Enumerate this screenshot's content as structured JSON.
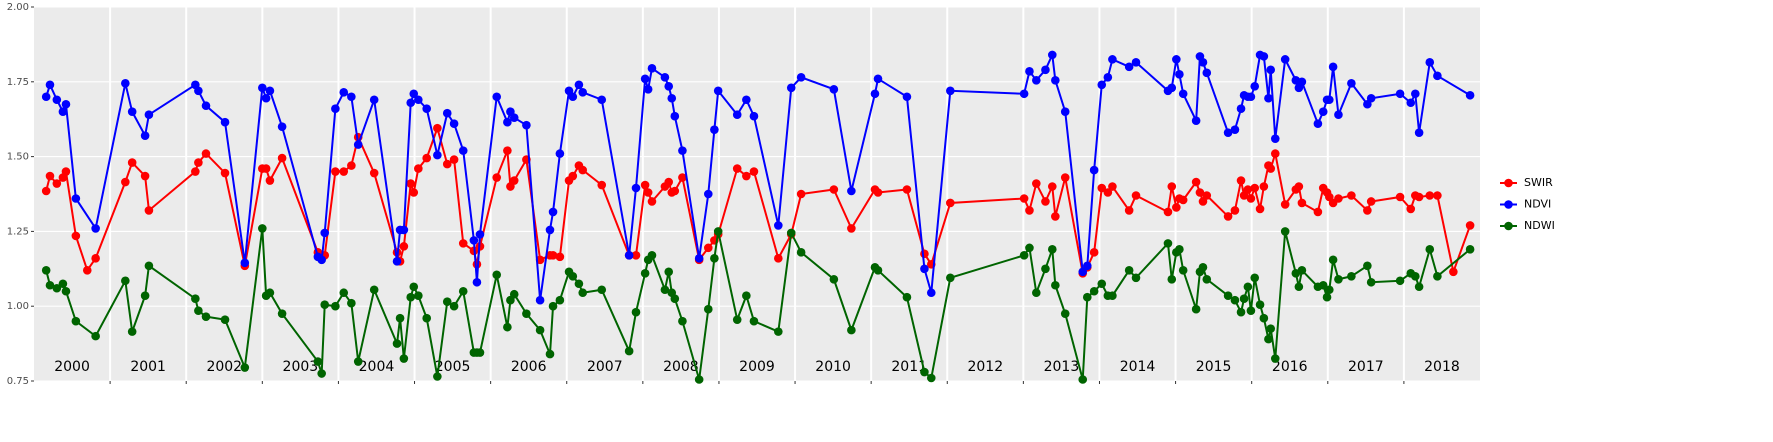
{
  "chart_data": {
    "type": "line",
    "xlim": [
      2000,
      2019
    ],
    "ylim": [
      0.75,
      2.0
    ],
    "xticks": [
      2001,
      2002,
      2003,
      2004,
      2005,
      2006,
      2007,
      2008,
      2009,
      2010,
      2011,
      2012,
      2013,
      2014,
      2015,
      2016,
      2017,
      2018
    ],
    "yticks": [
      {
        "value": 0.75,
        "label": "0.75"
      },
      {
        "value": 1.0,
        "label": "1.00"
      },
      {
        "value": 1.25,
        "label": "1.25"
      },
      {
        "value": 1.5,
        "label": "1.50"
      },
      {
        "value": 1.75,
        "label": "1.75"
      },
      {
        "value": 2.0,
        "label": "2.00"
      }
    ],
    "year_labels": [
      2000,
      2001,
      2002,
      2003,
      2004,
      2005,
      2006,
      2007,
      2008,
      2009,
      2010,
      2011,
      2012,
      2013,
      2014,
      2015,
      2016,
      2017,
      2018
    ],
    "grid": true,
    "legend": "right",
    "x": [
      2000.16,
      2000.21,
      2000.3,
      2000.38,
      2000.42,
      2000.55,
      2000.81,
      2001.2,
      2001.29,
      2001.46,
      2001.51,
      2002.12,
      2002.16,
      2002.26,
      2002.51,
      2002.77,
      2003.0,
      2003.05,
      2003.1,
      2003.26,
      2003.73,
      2003.78,
      2003.82,
      2003.96,
      2004.07,
      2004.17,
      2004.26,
      2004.47,
      2004.77,
      2004.81,
      2004.86,
      2004.95,
      2004.99,
      2005.05,
      2005.16,
      2005.3,
      2005.43,
      2005.52,
      2005.64,
      2005.78,
      2005.82,
      2005.86,
      2006.08,
      2006.22,
      2006.26,
      2006.31,
      2006.47,
      2006.65,
      2006.78,
      2006.82,
      2006.91,
      2007.03,
      2007.08,
      2007.16,
      2007.21,
      2007.46,
      2007.82,
      2007.91,
      2008.03,
      2008.07,
      2008.12,
      2008.29,
      2008.34,
      2008.38,
      2008.42,
      2008.52,
      2008.74,
      2008.86,
      2008.94,
      2008.99,
      2009.24,
      2009.36,
      2009.46,
      2009.78,
      2009.95,
      2010.08,
      2010.51,
      2010.74,
      2011.05,
      2011.09,
      2011.47,
      2011.7,
      2011.79,
      2012.04,
      2013.01,
      2013.08,
      2013.17,
      2013.29,
      2013.38,
      2013.42,
      2013.55,
      2013.78,
      2013.84,
      2013.93,
      2014.03,
      2014.11,
      2014.17,
      2014.39,
      2014.48,
      2014.9,
      2014.95,
      2015.01,
      2015.05,
      2015.1,
      2015.27,
      2015.32,
      2015.36,
      2015.41,
      2015.69,
      2015.78,
      2015.86,
      2015.9,
      2015.95,
      2015.99,
      2016.04,
      2016.11,
      2016.16,
      2016.22,
      2016.25,
      2016.31,
      2016.44,
      2016.58,
      2016.62,
      2016.66,
      2016.87,
      2016.94,
      2016.99,
      2017.02,
      2017.07,
      2017.14,
      2017.31,
      2017.52,
      2017.57,
      2017.95,
      2018.09,
      2018.15,
      2018.2,
      2018.34,
      2018.44,
      2018.87
    ],
    "series": [
      {
        "name": "SWIR",
        "color": "#ff0000",
        "x": [
          2000.16,
          2000.21,
          2000.3,
          2000.38,
          2000.42,
          2000.55,
          2000.7,
          2000.81,
          2001.2,
          2001.29,
          2001.46,
          2001.51,
          2002.12,
          2002.16,
          2002.26,
          2002.51,
          2002.77,
          2003.0,
          2003.05,
          2003.1,
          2003.26,
          2003.73,
          2003.78,
          2003.82,
          2003.96,
          2004.07,
          2004.17,
          2004.26,
          2004.47,
          2004.77,
          2004.81,
          2004.86,
          2004.95,
          2004.99,
          2005.05,
          2005.16,
          2005.3,
          2005.43,
          2005.52,
          2005.64,
          2005.78,
          2005.82,
          2005.86,
          2006.08,
          2006.22,
          2006.26,
          2006.31,
          2006.47,
          2006.65,
          2006.78,
          2006.82,
          2006.91,
          2007.03,
          2007.08,
          2007.16,
          2007.21,
          2007.46,
          2007.82,
          2007.91,
          2008.03,
          2008.07,
          2008.12,
          2008.29,
          2008.34,
          2008.38,
          2008.42,
          2008.52,
          2008.74,
          2008.86,
          2008.94,
          2008.99,
          2009.24,
          2009.36,
          2009.46,
          2009.78,
          2009.95,
          2010.08,
          2010.51,
          2010.74,
          2011.05,
          2011.09,
          2011.47,
          2011.7,
          2011.79,
          2012.04,
          2013.01,
          2013.08,
          2013.17,
          2013.29,
          2013.38,
          2013.42,
          2013.55,
          2013.78,
          2013.84,
          2013.93,
          2014.03,
          2014.11,
          2014.17,
          2014.39,
          2014.48,
          2014.9,
          2014.95,
          2015.01,
          2015.05,
          2015.1,
          2015.27,
          2015.32,
          2015.36,
          2015.41,
          2015.69,
          2015.78,
          2015.86,
          2015.9,
          2015.95,
          2015.99,
          2016.04,
          2016.11,
          2016.16,
          2016.22,
          2016.25,
          2016.31,
          2016.44,
          2016.58,
          2016.62,
          2016.66,
          2016.87,
          2016.94,
          2016.99,
          2017.02,
          2017.07,
          2017.14,
          2017.31,
          2017.52,
          2017.57,
          2017.95,
          2018.09,
          2018.15,
          2018.2,
          2018.34,
          2018.44,
          2018.65,
          2018.87
        ],
        "values": [
          1.385,
          1.435,
          1.41,
          1.43,
          1.45,
          1.235,
          1.12,
          1.16,
          1.415,
          1.48,
          1.435,
          1.32,
          1.45,
          1.48,
          1.51,
          1.445,
          1.135,
          1.46,
          1.46,
          1.42,
          1.495,
          1.18,
          1.17,
          1.17,
          1.45,
          1.45,
          1.47,
          1.565,
          1.445,
          1.18,
          1.15,
          1.2,
          1.41,
          1.38,
          1.46,
          1.495,
          1.595,
          1.475,
          1.49,
          1.21,
          1.185,
          1.14,
          1.2,
          1.43,
          1.52,
          1.4,
          1.42,
          1.49,
          1.155,
          1.17,
          1.17,
          1.165,
          1.42,
          1.435,
          1.47,
          1.455,
          1.405,
          1.17,
          1.17,
          1.405,
          1.38,
          1.35,
          1.4,
          1.415,
          1.38,
          1.385,
          1.43,
          1.155,
          1.195,
          1.22,
          1.24,
          1.46,
          1.435,
          1.45,
          1.16,
          1.24,
          1.375,
          1.39,
          1.26,
          1.39,
          1.38,
          1.39,
          1.175,
          1.14,
          1.345,
          1.36,
          1.32,
          1.41,
          1.35,
          1.4,
          1.3,
          1.43,
          1.11,
          1.13,
          1.18,
          1.395,
          1.38,
          1.4,
          1.32,
          1.37,
          1.315,
          1.4,
          1.33,
          1.36,
          1.355,
          1.415,
          1.38,
          1.35,
          1.37,
          1.3,
          1.32,
          1.42,
          1.37,
          1.39,
          1.36,
          1.395,
          1.325,
          1.4,
          1.47,
          1.46,
          1.51,
          1.34,
          1.39,
          1.4,
          1.345,
          1.315,
          1.395,
          1.38,
          1.365,
          1.345,
          1.36,
          1.37,
          1.32,
          1.35,
          1.365,
          1.325,
          1.37,
          1.365,
          1.37,
          1.37,
          1.115,
          1.27
        ]
      },
      {
        "name": "NDVI",
        "color": "#0000ff",
        "values": [
          1.7,
          1.74,
          1.69,
          1.65,
          1.675,
          1.36,
          1.26,
          1.745,
          1.65,
          1.57,
          1.64,
          1.74,
          1.72,
          1.67,
          1.615,
          1.145,
          1.73,
          1.695,
          1.72,
          1.6,
          1.165,
          1.155,
          1.245,
          1.66,
          1.715,
          1.7,
          1.54,
          1.69,
          1.15,
          1.255,
          1.255,
          1.68,
          1.71,
          1.69,
          1.66,
          1.505,
          1.645,
          1.61,
          1.52,
          1.22,
          1.08,
          1.24,
          1.7,
          1.615,
          1.65,
          1.63,
          1.605,
          1.02,
          1.255,
          1.315,
          1.51,
          1.72,
          1.7,
          1.74,
          1.715,
          1.69,
          1.17,
          1.395,
          1.76,
          1.725,
          1.795,
          1.765,
          1.735,
          1.695,
          1.635,
          1.52,
          1.16,
          1.375,
          1.59,
          1.72,
          1.64,
          1.69,
          1.635,
          1.27,
          1.73,
          1.765,
          1.725,
          1.385,
          1.71,
          1.76,
          1.7,
          1.125,
          1.045,
          1.72,
          1.71,
          1.785,
          1.755,
          1.79,
          1.84,
          1.755,
          1.65,
          1.115,
          1.135,
          1.455,
          1.74,
          1.765,
          1.825,
          1.8,
          1.815,
          1.72,
          1.73,
          1.825,
          1.775,
          1.71,
          1.62,
          1.835,
          1.815,
          1.78,
          1.58,
          1.59,
          1.66,
          1.705,
          1.7,
          1.7,
          1.735,
          1.84,
          1.835,
          1.695,
          1.79,
          1.56,
          1.825,
          1.755,
          1.73,
          1.75,
          1.61,
          1.65,
          1.69,
          1.69,
          1.8,
          1.64,
          1.745,
          1.675,
          1.695,
          1.71,
          1.68,
          1.71,
          1.58,
          1.815,
          1.77,
          1.705
        ]
      },
      {
        "name": "NDWI",
        "color": "#006400",
        "values": [
          1.12,
          1.07,
          1.06,
          1.075,
          1.05,
          0.95,
          0.9,
          1.085,
          0.915,
          1.035,
          1.135,
          1.025,
          0.985,
          0.965,
          0.955,
          0.795,
          1.26,
          1.035,
          1.045,
          0.975,
          0.815,
          0.775,
          1.005,
          1.0,
          1.045,
          1.01,
          0.815,
          1.055,
          0.875,
          0.96,
          0.825,
          1.03,
          1.065,
          1.035,
          0.96,
          0.765,
          1.015,
          1.0,
          1.05,
          0.845,
          0.845,
          0.845,
          1.105,
          0.93,
          1.02,
          1.04,
          0.975,
          0.92,
          0.84,
          1.0,
          1.02,
          1.115,
          1.1,
          1.075,
          1.045,
          1.055,
          0.85,
          0.98,
          1.11,
          1.155,
          1.17,
          1.055,
          1.115,
          1.045,
          1.025,
          0.95,
          0.755,
          0.99,
          1.16,
          1.25,
          0.955,
          1.035,
          0.95,
          0.915,
          1.245,
          1.18,
          1.09,
          0.92,
          1.13,
          1.12,
          1.03,
          0.78,
          0.76,
          1.095,
          1.17,
          1.195,
          1.045,
          1.125,
          1.19,
          1.07,
          0.975,
          0.755,
          1.03,
          1.05,
          1.075,
          1.035,
          1.035,
          1.12,
          1.095,
          1.21,
          1.09,
          1.18,
          1.19,
          1.12,
          0.99,
          1.115,
          1.13,
          1.09,
          1.035,
          1.02,
          0.98,
          1.025,
          1.065,
          0.985,
          1.095,
          1.005,
          0.96,
          0.89,
          0.925,
          0.825,
          1.25,
          1.11,
          1.065,
          1.12,
          1.065,
          1.07,
          1.03,
          1.055,
          1.155,
          1.09,
          1.1,
          1.135,
          1.08,
          1.085,
          1.11,
          1.1,
          1.065,
          1.19,
          1.1,
          1.19
        ]
      }
    ]
  }
}
